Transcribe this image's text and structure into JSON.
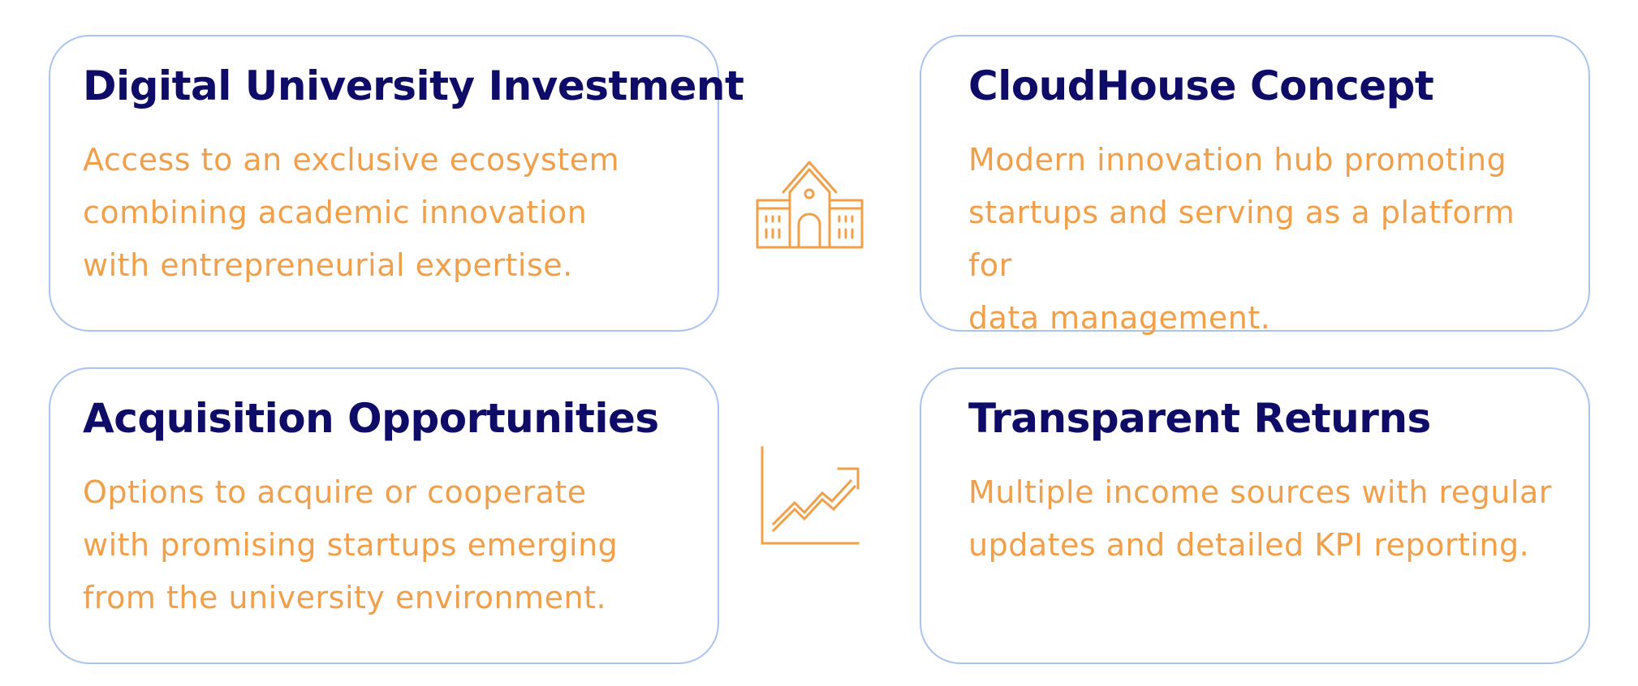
{
  "colors": {
    "title": "#0e0c66",
    "text": "#f0a04a",
    "border": "#a9c4ee",
    "icon": "#f0a04a"
  },
  "icons": {
    "middle_top": "university-icon",
    "middle_bottom": "growth-chart-icon"
  },
  "cards": [
    {
      "title": "Digital University Investment",
      "lines": [
        "Access to an exclusive ecosystem",
        "combining academic innovation",
        "with entrepreneurial expertise."
      ]
    },
    {
      "title": "CloudHouse Concept",
      "lines": [
        "Modern innovation hub promoting",
        "startups and serving as a platform for",
        "data management."
      ]
    },
    {
      "title": "Acquisition Opportunities",
      "lines": [
        "Options to acquire or cooperate",
        "with promising startups emerging",
        "from the university environment."
      ]
    },
    {
      "title": "Transparent Returns",
      "lines": [
        "Multiple income sources with regular",
        "updates and detailed KPI reporting."
      ]
    }
  ]
}
